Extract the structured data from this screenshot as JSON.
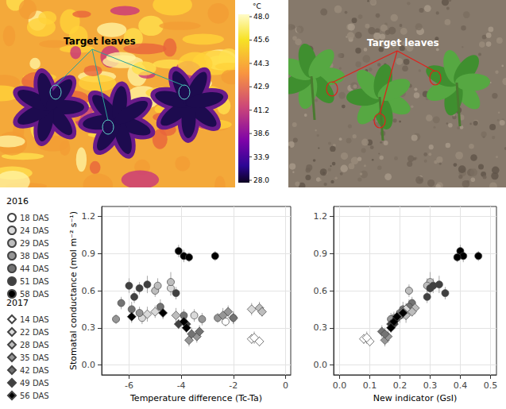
{
  "images": {
    "thermal": {
      "annotation": "Target leaves",
      "colorbar": {
        "unit": "°C",
        "ticks": [
          {
            "value": 48,
            "label": "48.0"
          },
          45.6,
          44.3,
          42.9,
          41.2,
          38.6,
          33.9,
          {
            "value": 28,
            "label": "28.0"
          }
        ]
      }
    },
    "photo": {
      "annotation": "Target leaves"
    }
  },
  "legend_groups": [
    {
      "title": "2016",
      "names": [
        "18 DAS",
        "24 DAS",
        "29 DAS",
        "38 DAS",
        "44 DAS",
        "51 DAS",
        "58 DAS"
      ]
    },
    {
      "title": "2017",
      "names": [
        "14 DAS",
        "22 DAS",
        "28 DAS",
        "35 DAS",
        "42 DAS",
        "49 DAS",
        "56 DAS"
      ]
    }
  ],
  "chart_data": [
    {
      "type": "scatter",
      "x_label": "Temperature difference (Tc-Ta)",
      "y_label": "Stomatal conductance (mol m⁻² s⁻¹)",
      "xlim": [
        -7.05,
        0.2
      ],
      "xticks": [
        -6,
        -4,
        -2,
        0
      ],
      "ylim": [
        -0.08,
        1.28
      ],
      "yticks": [
        {
          "value": 0,
          "label": "0.0"
        },
        0.3,
        0.6,
        0.9,
        1.2
      ],
      "grid": true,
      "legend": "left",
      "series": [
        {
          "name": "18 DAS",
          "color": "#ffffff",
          "marker": "circle",
          "values": [
            [
              -2.0,
              0.38
            ],
            [
              -2.3,
              0.35
            ]
          ],
          "errors": [
            0.05,
            0.04
          ]
        },
        {
          "name": "24 DAS",
          "color": "#d9d9d9",
          "marker": "circle",
          "values": [
            [
              -5.5,
              0.38
            ],
            [
              -4.4,
              0.62
            ],
            [
              -3.5,
              0.4
            ]
          ],
          "errors": [
            0.05,
            0.06,
            0.05
          ]
        },
        {
          "name": "29 DAS",
          "color": "#bdbdbd",
          "marker": "circle",
          "values": [
            [
              -4.4,
              0.67
            ],
            [
              -5.0,
              0.6
            ],
            [
              -4.9,
              0.64
            ]
          ],
          "errors": [
            0.08,
            0.05,
            0.06
          ]
        },
        {
          "name": "38 DAS",
          "color": "#969696",
          "marker": "circle",
          "values": [
            [
              -6.5,
              0.37
            ],
            [
              -5.6,
              0.42
            ],
            [
              -3.2,
              0.37
            ],
            [
              -2.6,
              0.38
            ]
          ],
          "errors": [
            0.04,
            0.05,
            0.05,
            0.04
          ]
        },
        {
          "name": "44 DAS",
          "color": "#737373",
          "marker": "circle",
          "values": [
            [
              -6.3,
              0.5
            ],
            [
              -5.9,
              0.45
            ],
            [
              -3.9,
              0.4
            ],
            [
              -4.8,
              0.47
            ]
          ],
          "errors": [
            0.05,
            0.06,
            0.05,
            0.06
          ]
        },
        {
          "name": "51 DAS",
          "color": "#404040",
          "marker": "circle",
          "values": [
            [
              -6.0,
              0.64
            ],
            [
              -5.6,
              0.62
            ],
            [
              -5.3,
              0.65
            ],
            [
              -4.2,
              0.58
            ],
            [
              -5.8,
              0.55
            ]
          ],
          "errors": [
            0.06,
            0.05,
            0.07,
            0.05,
            0.05
          ]
        },
        {
          "name": "58 DAS",
          "color": "#000000",
          "marker": "circle",
          "values": [
            [
              -4.1,
              0.92
            ],
            [
              -3.9,
              0.88
            ],
            [
              -3.7,
              0.87
            ],
            [
              -2.7,
              0.88
            ]
          ],
          "errors": [
            0.05,
            0.05,
            0.04,
            0.04
          ]
        },
        {
          "name": "14 DAS",
          "color": "#ffffff",
          "marker": "diamond",
          "values": [
            [
              -1.3,
              0.21
            ],
            [
              -1.0,
              0.19
            ],
            [
              -1.2,
              0.22
            ]
          ],
          "errors": [
            0.04,
            0.04,
            0.05
          ]
        },
        {
          "name": "22 DAS",
          "color": "#d9d9d9",
          "marker": "diamond",
          "values": [
            [
              -5.0,
              0.43
            ],
            [
              -5.3,
              0.41
            ],
            [
              -1.3,
              0.45
            ]
          ],
          "errors": [
            0.05,
            0.06,
            0.05
          ]
        },
        {
          "name": "28 DAS",
          "color": "#bdbdbd",
          "marker": "diamond",
          "values": [
            [
              -1.0,
              0.46
            ],
            [
              -0.9,
              0.43
            ],
            [
              -4.2,
              0.4
            ]
          ],
          "errors": [
            0.05,
            0.04,
            0.06
          ]
        },
        {
          "name": "35 DAS",
          "color": "#969696",
          "marker": "diamond",
          "values": [
            [
              -3.7,
              0.2
            ],
            [
              -3.4,
              0.23
            ],
            [
              -2.4,
              0.4
            ],
            [
              -2.2,
              0.43
            ]
          ],
          "errors": [
            0.05,
            0.05,
            0.06,
            0.05
          ]
        },
        {
          "name": "42 DAS",
          "color": "#737373",
          "marker": "diamond",
          "values": [
            [
              -3.3,
              0.27
            ],
            [
              -3.6,
              0.25
            ],
            [
              -2.0,
              0.38
            ]
          ],
          "errors": [
            0.05,
            0.05,
            0.05
          ]
        },
        {
          "name": "49 DAS",
          "color": "#404040",
          "marker": "diamond",
          "values": [
            [
              -3.8,
              0.33
            ],
            [
              -4.1,
              0.33
            ]
          ],
          "errors": [
            0.05,
            0.04
          ]
        },
        {
          "name": "56 DAS",
          "color": "#000000",
          "marker": "diamond",
          "values": [
            [
              -4.7,
              0.42
            ],
            [
              -3.9,
              0.35
            ],
            [
              -3.8,
              0.3
            ],
            [
              -5.9,
              0.39
            ]
          ],
          "errors": [
            0.05,
            0.05,
            0.04,
            0.05
          ]
        }
      ]
    },
    {
      "type": "scatter",
      "x_label": "New indicator (GsI)",
      "xlim": [
        -0.02,
        0.52
      ],
      "xticks": [
        {
          "value": 0,
          "label": "0.0"
        },
        0.1,
        0.2,
        0.3,
        0.4,
        0.5
      ],
      "ylim": [
        -0.08,
        1.28
      ],
      "yticks": [
        {
          "value": 0,
          "label": "0.0"
        },
        0.3,
        0.6,
        0.9,
        1.2
      ],
      "grid": true,
      "legend": "left",
      "series": [
        {
          "name": "18 DAS",
          "color": "#ffffff",
          "marker": "circle",
          "values": [
            [
              0.19,
              0.38
            ],
            [
              0.18,
              0.35
            ]
          ],
          "errors": [
            0.05,
            0.04
          ]
        },
        {
          "name": "24 DAS",
          "color": "#d9d9d9",
          "marker": "circle",
          "values": [
            [
              0.18,
              0.38
            ],
            [
              0.3,
              0.62
            ],
            [
              0.2,
              0.4
            ]
          ],
          "errors": [
            0.05,
            0.06,
            0.05
          ]
        },
        {
          "name": "29 DAS",
          "color": "#bdbdbd",
          "marker": "circle",
          "values": [
            [
              0.3,
              0.67
            ],
            [
              0.23,
              0.6
            ],
            [
              0.29,
              0.64
            ]
          ],
          "errors": [
            0.08,
            0.05,
            0.06
          ]
        },
        {
          "name": "38 DAS",
          "color": "#969696",
          "marker": "circle",
          "values": [
            [
              0.18,
              0.37
            ],
            [
              0.2,
              0.42
            ],
            [
              0.17,
              0.37
            ],
            [
              0.19,
              0.38
            ]
          ],
          "errors": [
            0.04,
            0.05,
            0.05,
            0.04
          ]
        },
        {
          "name": "44 DAS",
          "color": "#737373",
          "marker": "circle",
          "values": [
            [
              0.24,
              0.5
            ],
            [
              0.21,
              0.45
            ],
            [
              0.2,
              0.4
            ],
            [
              0.23,
              0.47
            ]
          ],
          "errors": [
            0.05,
            0.06,
            0.05,
            0.06
          ]
        },
        {
          "name": "51 DAS",
          "color": "#404040",
          "marker": "circle",
          "values": [
            [
              0.31,
              0.64
            ],
            [
              0.3,
              0.62
            ],
            [
              0.33,
              0.65
            ],
            [
              0.35,
              0.58
            ],
            [
              0.29,
              0.55
            ]
          ],
          "errors": [
            0.06,
            0.05,
            0.07,
            0.05,
            0.05
          ]
        },
        {
          "name": "58 DAS",
          "color": "#000000",
          "marker": "circle",
          "values": [
            [
              0.4,
              0.92
            ],
            [
              0.41,
              0.88
            ],
            [
              0.39,
              0.87
            ],
            [
              0.46,
              0.88
            ]
          ],
          "errors": [
            0.05,
            0.05,
            0.04,
            0.04
          ]
        },
        {
          "name": "14 DAS",
          "color": "#ffffff",
          "marker": "diamond",
          "values": [
            [
              0.08,
              0.21
            ],
            [
              0.1,
              0.19
            ],
            [
              0.09,
              0.22
            ]
          ],
          "errors": [
            0.04,
            0.04,
            0.05
          ]
        },
        {
          "name": "22 DAS",
          "color": "#d9d9d9",
          "marker": "diamond",
          "values": [
            [
              0.21,
              0.43
            ],
            [
              0.2,
              0.41
            ],
            [
              0.22,
              0.45
            ]
          ],
          "errors": [
            0.05,
            0.06,
            0.05
          ]
        },
        {
          "name": "28 DAS",
          "color": "#bdbdbd",
          "marker": "diamond",
          "values": [
            [
              0.25,
              0.46
            ],
            [
              0.24,
              0.43
            ],
            [
              0.22,
              0.4
            ]
          ],
          "errors": [
            0.05,
            0.04,
            0.06
          ]
        },
        {
          "name": "35 DAS",
          "color": "#969696",
          "marker": "diamond",
          "values": [
            [
              0.15,
              0.2
            ],
            [
              0.16,
              0.23
            ],
            [
              0.2,
              0.4
            ],
            [
              0.21,
              0.43
            ]
          ],
          "errors": [
            0.05,
            0.05,
            0.06,
            0.05
          ]
        },
        {
          "name": "42 DAS",
          "color": "#737373",
          "marker": "diamond",
          "values": [
            [
              0.14,
              0.27
            ],
            [
              0.15,
              0.25
            ],
            [
              0.19,
              0.38
            ]
          ],
          "errors": [
            0.05,
            0.05,
            0.05
          ]
        },
        {
          "name": "49 DAS",
          "color": "#404040",
          "marker": "diamond",
          "values": [
            [
              0.17,
              0.33
            ],
            [
              0.18,
              0.33
            ]
          ],
          "errors": [
            0.05,
            0.04
          ]
        },
        {
          "name": "56 DAS",
          "color": "#000000",
          "marker": "diamond",
          "values": [
            [
              0.21,
              0.42
            ],
            [
              0.18,
              0.35
            ],
            [
              0.17,
              0.3
            ],
            [
              0.19,
              0.39
            ]
          ],
          "errors": [
            0.05,
            0.05,
            0.04,
            0.05
          ]
        }
      ]
    }
  ]
}
